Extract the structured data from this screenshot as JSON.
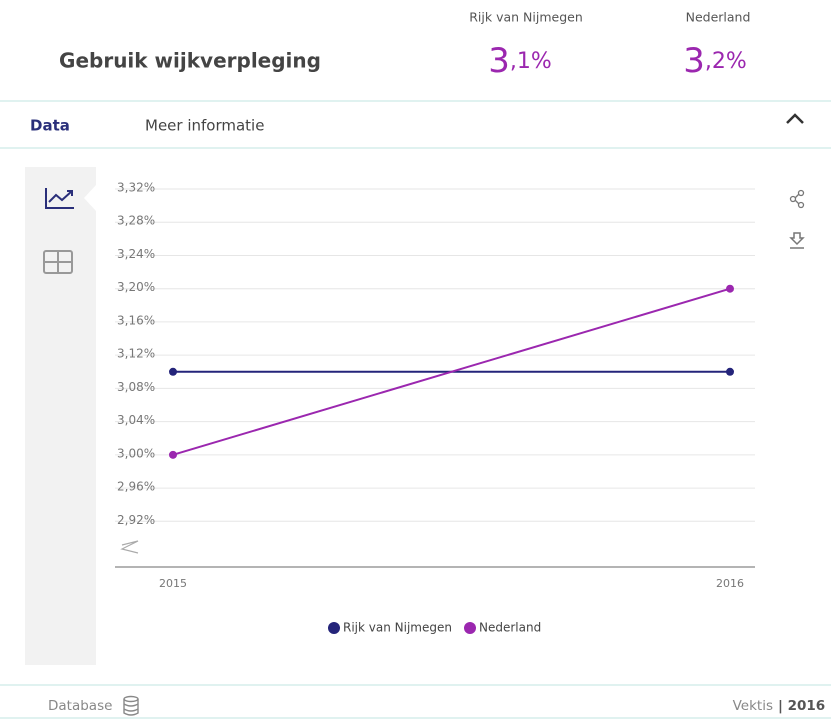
{
  "header": {
    "title": "Gebruik wijkverpleging",
    "stats": [
      {
        "name": "Rijk van Nijmegen",
        "value": "3,1%"
      },
      {
        "name": "Nederland",
        "value": "3,2%"
      }
    ]
  },
  "tabs": [
    "Data",
    "Meer informatie"
  ],
  "footer": {
    "left": "Database",
    "source": "Vektis",
    "year": "| 2016"
  },
  "chart_data": {
    "type": "line",
    "categories": [
      "2015",
      "2016"
    ],
    "series": [
      {
        "name": "Rijk van Nijmegen",
        "color": "#24247a",
        "values": [
          3.1,
          3.1
        ]
      },
      {
        "name": "Nederland",
        "color": "#9b27af",
        "values": [
          3.0,
          3.2
        ]
      }
    ],
    "ylim": [
      2.865,
      3.32
    ],
    "yticks": [
      {
        "value": 2.92,
        "label": "2,92%"
      },
      {
        "value": 2.96,
        "label": "2,96%"
      },
      {
        "value": 3.0,
        "label": "3,00%"
      },
      {
        "value": 3.04,
        "label": "3,04%"
      },
      {
        "value": 3.08,
        "label": "3,08%"
      },
      {
        "value": 3.12,
        "label": "3,12%"
      },
      {
        "value": 3.16,
        "label": "3,16%"
      },
      {
        "value": 3.2,
        "label": "3,20%"
      },
      {
        "value": 3.24,
        "label": "3,24%"
      },
      {
        "value": 3.28,
        "label": "3,28%"
      },
      {
        "value": 3.32,
        "label": "3,32%"
      }
    ],
    "grid": true,
    "legend": "bottom"
  }
}
